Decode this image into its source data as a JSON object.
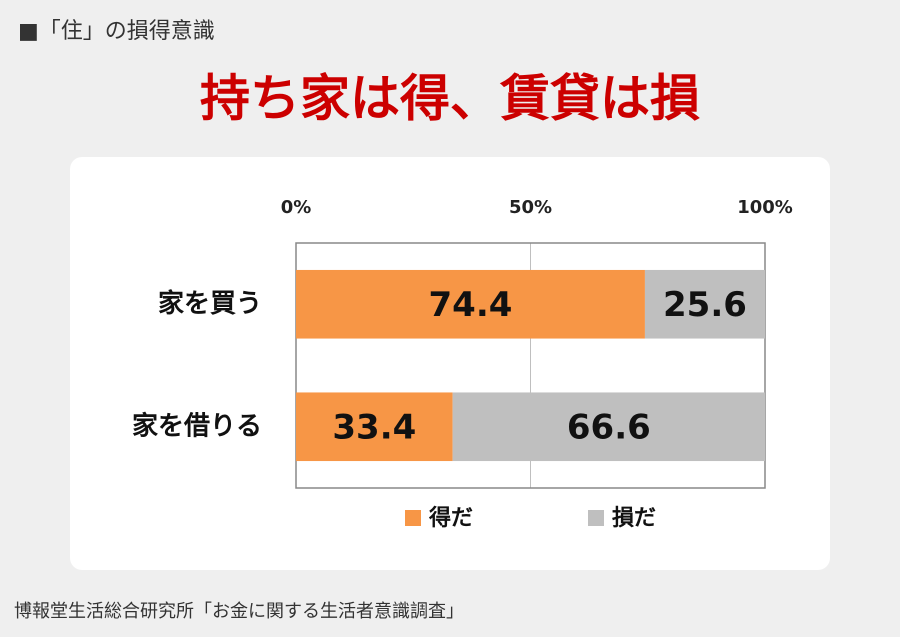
{
  "header": "■「住」の損得意識",
  "source": "博報堂生活総合研究所「お金に関する生活者意識調査」",
  "chart_data": {
    "type": "bar",
    "orientation": "horizontal",
    "stacked": true,
    "title": "持ち家は得、賃貸は損",
    "categories": [
      "家を買う",
      "家を借りる"
    ],
    "series": [
      {
        "name": "得だ",
        "color": "#f79646",
        "values": [
          74.4,
          33.4
        ]
      },
      {
        "name": "損だ",
        "color": "#bfbfbf",
        "values": [
          25.6,
          66.6
        ]
      }
    ],
    "xlim": [
      0,
      100
    ],
    "xticks": [
      {
        "value": 0,
        "label": "0%"
      },
      {
        "value": 50,
        "label": "50%"
      },
      {
        "value": 100,
        "label": "100%"
      }
    ],
    "grid": true,
    "legend": "bottom"
  }
}
